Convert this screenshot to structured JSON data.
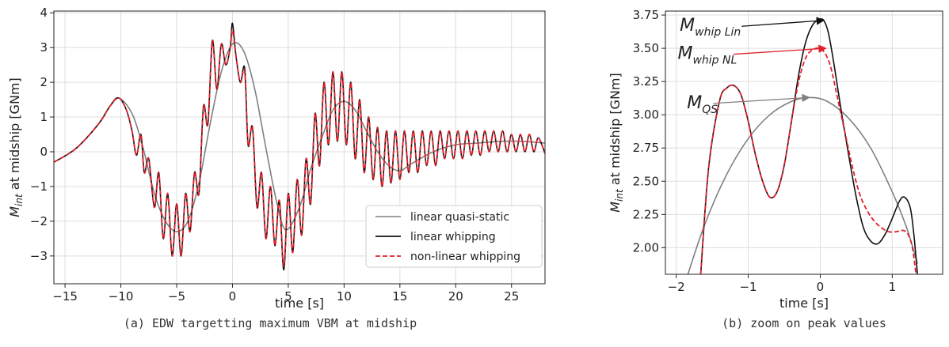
{
  "chart_data": [
    {
      "type": "line",
      "caption": "(a) EDW targetting maximum VBM at midship",
      "xlabel": "time [s]",
      "ylabel_main": "M",
      "ylabel_sub": "int",
      "ylabel_rest": " at midship [GNm]",
      "xlim": [
        -16,
        28
      ],
      "ylim": [
        -3.8,
        4.05
      ],
      "xticks": [
        -15,
        -10,
        -5,
        0,
        5,
        10,
        15,
        20,
        25
      ],
      "xtick_labels": [
        "−15",
        "−10",
        "−5",
        "0",
        "5",
        "10",
        "15",
        "20",
        "25"
      ],
      "yticks": [
        -3,
        -2,
        -1,
        0,
        1,
        2,
        3,
        4
      ],
      "ytick_labels": [
        "−3",
        "−2",
        "−1",
        "0",
        "1",
        "2",
        "3",
        "4"
      ],
      "grid": true,
      "legend_position": "lower-right",
      "series": [
        {
          "name": "linear quasi-static",
          "color": "#808080",
          "dash": "solid",
          "x": [
            -16,
            -14,
            -12,
            -11,
            -10.2,
            -9,
            -8,
            -7,
            -6,
            -5,
            -4,
            -3,
            -2,
            -1,
            0,
            1,
            2,
            3,
            4,
            4.8,
            6,
            7,
            8,
            9,
            10,
            11,
            12,
            13,
            14,
            15,
            16,
            18,
            20,
            22,
            24,
            26,
            28
          ],
          "y": [
            -0.3,
            0.1,
            0.8,
            1.3,
            1.55,
            1.1,
            0.1,
            -1.2,
            -2.0,
            -2.3,
            -2.0,
            -0.9,
            0.8,
            2.3,
            3.1,
            2.9,
            1.8,
            0.1,
            -1.5,
            -2.25,
            -1.6,
            -0.5,
            0.4,
            1.2,
            1.45,
            1.2,
            0.6,
            0.0,
            -0.4,
            -0.55,
            -0.35,
            0.0,
            0.2,
            0.25,
            0.3,
            0.3,
            0.25
          ]
        },
        {
          "name": "linear whipping",
          "color": "#111111",
          "dash": "solid",
          "x": [
            -16,
            -14,
            -12,
            -11,
            -10.2,
            -9.5,
            -9,
            -8.6,
            -8.2,
            -7.9,
            -7.5,
            -7.0,
            -6.6,
            -6.2,
            -5.8,
            -5.4,
            -5.0,
            -4.6,
            -4.2,
            -3.8,
            -3.4,
            -3.0,
            -2.6,
            -2.2,
            -1.8,
            -1.4,
            -1.0,
            -0.6,
            -0.2,
            0.0,
            0.3,
            0.7,
            1.1,
            1.4,
            1.8,
            2.2,
            2.6,
            3.0,
            3.4,
            3.8,
            4.2,
            4.6,
            5.0,
            5.4,
            5.8,
            6.2,
            6.6,
            7.0,
            7.4,
            7.8,
            8.2,
            8.6,
            9.0,
            9.4,
            9.8,
            10.2,
            10.6,
            11.0,
            11.4,
            11.8,
            12.2,
            12.6,
            13.0,
            13.4,
            13.8,
            14.2,
            14.6,
            15.0,
            15.4,
            15.8,
            16.2,
            16.6,
            17.0,
            17.4,
            17.8,
            18.2,
            18.6,
            19.0,
            19.4,
            19.8,
            20.2,
            20.6,
            21.0,
            21.4,
            21.8,
            22.2,
            22.6,
            23.0,
            23.4,
            23.8,
            24.2,
            24.6,
            25.0,
            25.4,
            25.8,
            26.2,
            26.6,
            27.0,
            27.4,
            28.0
          ],
          "y": [
            -0.3,
            0.1,
            0.8,
            1.3,
            1.55,
            1.2,
            0.6,
            -0.1,
            0.5,
            -0.6,
            -0.2,
            -1.6,
            -0.6,
            -2.5,
            -1.2,
            -3.0,
            -1.5,
            -3.0,
            -1.2,
            -2.3,
            -0.6,
            -1.2,
            1.3,
            0.8,
            3.2,
            1.8,
            3.1,
            2.5,
            3.0,
            3.7,
            2.8,
            2.0,
            2.4,
            0.2,
            0.7,
            -1.6,
            -0.6,
            -2.5,
            -1.0,
            -2.7,
            -1.4,
            -3.4,
            -1.2,
            -2.9,
            -0.8,
            -2.4,
            -0.2,
            -1.5,
            1.1,
            -0.4,
            2.0,
            0.2,
            2.3,
            0.3,
            2.3,
            0.2,
            2.0,
            -0.2,
            1.5,
            -0.6,
            1.0,
            -0.8,
            0.7,
            -1.0,
            0.6,
            -0.9,
            0.6,
            -0.8,
            0.6,
            -0.6,
            0.6,
            -0.6,
            0.6,
            -0.4,
            0.6,
            -0.4,
            0.6,
            -0.2,
            0.6,
            -0.2,
            0.6,
            -0.2,
            0.6,
            -0.1,
            0.6,
            -0.1,
            0.6,
            0.0,
            0.6,
            0.0,
            0.6,
            0.0,
            0.5,
            0.0,
            0.5,
            0.0,
            0.5,
            0.0,
            0.4,
            -0.05
          ]
        },
        {
          "name": "non-linear whipping",
          "color": "#e0202a",
          "dash": "dashed",
          "x": [
            -16,
            -14,
            -12,
            -11,
            -10.2,
            -9.5,
            -9,
            -8.6,
            -8.2,
            -7.9,
            -7.5,
            -7.0,
            -6.6,
            -6.2,
            -5.8,
            -5.4,
            -5.0,
            -4.6,
            -4.2,
            -3.8,
            -3.4,
            -3.0,
            -2.6,
            -2.2,
            -1.8,
            -1.4,
            -1.0,
            -0.6,
            -0.2,
            0.0,
            0.3,
            0.7,
            1.1,
            1.4,
            1.8,
            2.2,
            2.6,
            3.0,
            3.4,
            3.8,
            4.2,
            4.6,
            5.0,
            5.4,
            5.8,
            6.2,
            6.6,
            7.0,
            7.4,
            7.8,
            8.2,
            8.6,
            9.0,
            9.4,
            9.8,
            10.2,
            10.6,
            11.0,
            11.4,
            11.8,
            12.2,
            12.6,
            13.0,
            13.4,
            13.8,
            14.2,
            14.6,
            15.0,
            15.4,
            15.8,
            16.2,
            16.6,
            17.0,
            17.4,
            17.8,
            18.2,
            18.6,
            19.0,
            19.4,
            19.8,
            20.2,
            20.6,
            21.0,
            21.4,
            21.8,
            22.2,
            22.6,
            23.0,
            23.4,
            23.8,
            24.2,
            24.6,
            25.0,
            25.4,
            25.8,
            26.2,
            26.6,
            27.0,
            27.4,
            28.0
          ],
          "y": [
            -0.3,
            0.1,
            0.8,
            1.3,
            1.55,
            1.2,
            0.6,
            -0.1,
            0.5,
            -0.6,
            -0.2,
            -1.6,
            -0.6,
            -2.5,
            -1.2,
            -3.0,
            -1.5,
            -3.0,
            -1.2,
            -2.3,
            -0.6,
            -1.2,
            1.3,
            0.8,
            3.2,
            1.8,
            3.1,
            2.5,
            3.0,
            3.5,
            2.8,
            2.0,
            2.3,
            0.2,
            0.7,
            -1.6,
            -0.6,
            -2.5,
            -1.0,
            -2.7,
            -1.4,
            -3.3,
            -1.2,
            -2.9,
            -0.8,
            -2.4,
            -0.2,
            -1.5,
            1.1,
            -0.4,
            2.0,
            0.2,
            2.3,
            0.3,
            2.3,
            0.2,
            2.0,
            -0.2,
            1.5,
            -0.6,
            1.0,
            -0.8,
            0.7,
            -1.0,
            0.6,
            -0.9,
            0.6,
            -0.8,
            0.6,
            -0.6,
            0.6,
            -0.6,
            0.6,
            -0.4,
            0.6,
            -0.4,
            0.6,
            -0.2,
            0.6,
            -0.2,
            0.6,
            -0.2,
            0.6,
            -0.1,
            0.6,
            -0.1,
            0.6,
            0.0,
            0.6,
            0.0,
            0.6,
            0.0,
            0.5,
            0.0,
            0.5,
            0.0,
            0.5,
            0.0,
            0.4,
            -0.05
          ]
        }
      ]
    },
    {
      "type": "line",
      "caption": "(b) zoom on peak values",
      "xlabel": "time [s]",
      "ylabel_main": "M",
      "ylabel_sub": "int",
      "ylabel_rest": " at midship [GNm]",
      "xlim": [
        -2.15,
        1.7
      ],
      "ylim": [
        1.8,
        3.78
      ],
      "xticks": [
        -2,
        -1,
        0,
        1
      ],
      "xtick_labels": [
        "−2",
        "−1",
        "0",
        "1"
      ],
      "yticks": [
        2.0,
        2.25,
        2.5,
        2.75,
        3.0,
        3.25,
        3.5,
        3.75
      ],
      "ytick_labels": [
        "2.00",
        "2.25",
        "2.50",
        "2.75",
        "3.00",
        "3.25",
        "3.50",
        "3.75"
      ],
      "grid": true,
      "series": [
        {
          "name": "linear quasi-static",
          "color": "#808080",
          "dash": "solid",
          "x": [
            -1.85,
            -1.6,
            -1.3,
            -1.0,
            -0.7,
            -0.4,
            -0.15,
            0.1,
            0.4,
            0.7,
            1.0,
            1.2,
            1.35
          ],
          "y": [
            1.78,
            2.18,
            2.55,
            2.82,
            3.0,
            3.1,
            3.13,
            3.1,
            2.97,
            2.75,
            2.42,
            2.15,
            1.88
          ]
        },
        {
          "name": "linear whipping",
          "color": "#111111",
          "dash": "solid",
          "x": [
            -1.66,
            -1.55,
            -1.4,
            -1.3,
            -1.2,
            -1.1,
            -1.0,
            -0.9,
            -0.8,
            -0.7,
            -0.6,
            -0.5,
            -0.4,
            -0.3,
            -0.2,
            -0.1,
            0.0,
            0.06,
            0.12,
            0.2,
            0.3,
            0.4,
            0.5,
            0.6,
            0.7,
            0.8,
            0.9,
            1.0,
            1.1,
            1.17,
            1.25,
            1.3,
            1.35
          ],
          "y": [
            1.8,
            2.6,
            3.1,
            3.2,
            3.22,
            3.15,
            2.95,
            2.7,
            2.5,
            2.38,
            2.42,
            2.62,
            2.95,
            3.3,
            3.55,
            3.68,
            3.72,
            3.7,
            3.6,
            3.35,
            3.0,
            2.68,
            2.38,
            2.15,
            2.05,
            2.03,
            2.1,
            2.22,
            2.35,
            2.38,
            2.3,
            2.1,
            1.8
          ]
        },
        {
          "name": "non-linear whipping",
          "color": "#e0202a",
          "dash": "dashed",
          "x": [
            -1.66,
            -1.55,
            -1.4,
            -1.3,
            -1.2,
            -1.1,
            -1.0,
            -0.9,
            -0.8,
            -0.7,
            -0.6,
            -0.5,
            -0.4,
            -0.3,
            -0.2,
            -0.1,
            0.0,
            0.08,
            0.15,
            0.25,
            0.35,
            0.45,
            0.55,
            0.65,
            0.75,
            0.85,
            0.95,
            1.05,
            1.15,
            1.22,
            1.28,
            1.33
          ],
          "y": [
            1.8,
            2.6,
            3.1,
            3.2,
            3.22,
            3.15,
            2.95,
            2.7,
            2.5,
            2.38,
            2.42,
            2.62,
            2.95,
            3.25,
            3.43,
            3.49,
            3.5,
            3.45,
            3.35,
            3.1,
            2.85,
            2.6,
            2.4,
            2.28,
            2.2,
            2.15,
            2.12,
            2.12,
            2.13,
            2.1,
            2.0,
            1.8
          ]
        }
      ],
      "annotations": [
        {
          "main": "M",
          "sub": "whip Lin",
          "color": "#111111",
          "text_x": -1.95,
          "text_y": 3.63,
          "target_x": 0.05,
          "target_y": 3.71
        },
        {
          "main": "M",
          "sub": "whip NL",
          "color": "#e0202a",
          "text_x": -1.98,
          "text_y": 3.42,
          "target_x": 0.08,
          "target_y": 3.5
        },
        {
          "main": "M",
          "sub": "QS",
          "color": "#808080",
          "text_x": -1.85,
          "text_y": 3.05,
          "target_x": -0.15,
          "target_y": 3.13
        }
      ]
    }
  ]
}
